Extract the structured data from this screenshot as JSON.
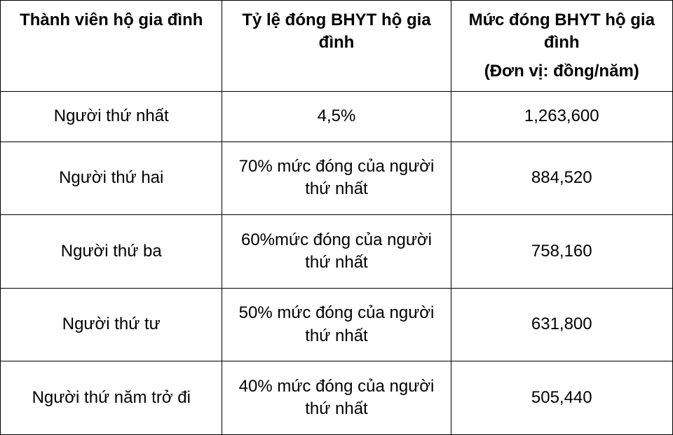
{
  "table": {
    "type": "table",
    "border_color": "#000000",
    "background_color": "#ffffff",
    "text_color": "#000000",
    "header_fontsize": 24,
    "header_fontweight": 700,
    "body_fontsize": 24,
    "body_fontweight": 400,
    "column_widths_pct": [
      33,
      34,
      33
    ],
    "columns": [
      {
        "label": "Thành viên hộ gia đình",
        "sub": ""
      },
      {
        "label": "Tỷ lệ đóng BHYT hộ gia đình",
        "sub": ""
      },
      {
        "label": "Mức đóng BHYT hộ gia đình",
        "sub": "(Đơn vị: đồng/năm)"
      }
    ],
    "rows": [
      {
        "member": "Người thứ nhất",
        "rate": "4,5%",
        "amount": "1,263,600"
      },
      {
        "member": "Người thứ hai",
        "rate": "70% mức đóng của người thứ nhất",
        "amount": "884,520"
      },
      {
        "member": "Người thứ ba",
        "rate": "60%mức đóng của người thứ nhất",
        "amount": "758,160"
      },
      {
        "member": "Người thứ tư",
        "rate": "50% mức đóng của người thứ nhất",
        "amount": "631,800"
      },
      {
        "member": "Người thứ năm trở đi",
        "rate": "40% mức đóng của người thứ nhất",
        "amount": "505,440"
      }
    ]
  }
}
